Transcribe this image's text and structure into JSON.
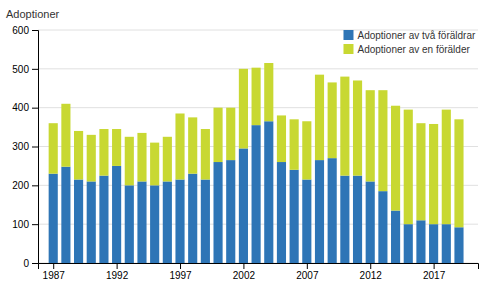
{
  "chart_data": {
    "type": "bar",
    "stacked": true,
    "ylabel": "Adoptioner",
    "x": [
      1987,
      1988,
      1989,
      1990,
      1991,
      1992,
      1993,
      1994,
      1995,
      1996,
      1997,
      1998,
      1999,
      2000,
      2001,
      2002,
      2003,
      2004,
      2005,
      2006,
      2007,
      2008,
      2009,
      2010,
      2011,
      2012,
      2013,
      2014,
      2015,
      2016,
      2017,
      2018,
      2019
    ],
    "series": [
      {
        "name": "Adoptioner av två föräldrar",
        "color": "#2E75B6",
        "values": [
          230,
          248,
          215,
          210,
          225,
          250,
          200,
          210,
          200,
          210,
          215,
          230,
          215,
          260,
          265,
          295,
          355,
          365,
          260,
          240,
          215,
          265,
          270,
          225,
          225,
          210,
          185,
          135,
          100,
          110,
          100,
          100,
          92
        ]
      },
      {
        "name": "Adoptioner av en förälder",
        "color": "#C8D832",
        "values": [
          130,
          162,
          125,
          120,
          120,
          95,
          125,
          125,
          110,
          115,
          170,
          145,
          130,
          140,
          135,
          205,
          148,
          150,
          120,
          130,
          150,
          220,
          195,
          255,
          245,
          235,
          260,
          270,
          295,
          250,
          258,
          295,
          278
        ]
      }
    ],
    "xlim": [
      1985.8,
      2020.5
    ],
    "xticks": [
      1987,
      1992,
      1997,
      2002,
      2007,
      2012,
      2017
    ],
    "ylim": [
      0,
      600
    ],
    "yticks": [
      0,
      100,
      200,
      300,
      400,
      500,
      600
    ],
    "grid": true,
    "legend": "upper right"
  }
}
